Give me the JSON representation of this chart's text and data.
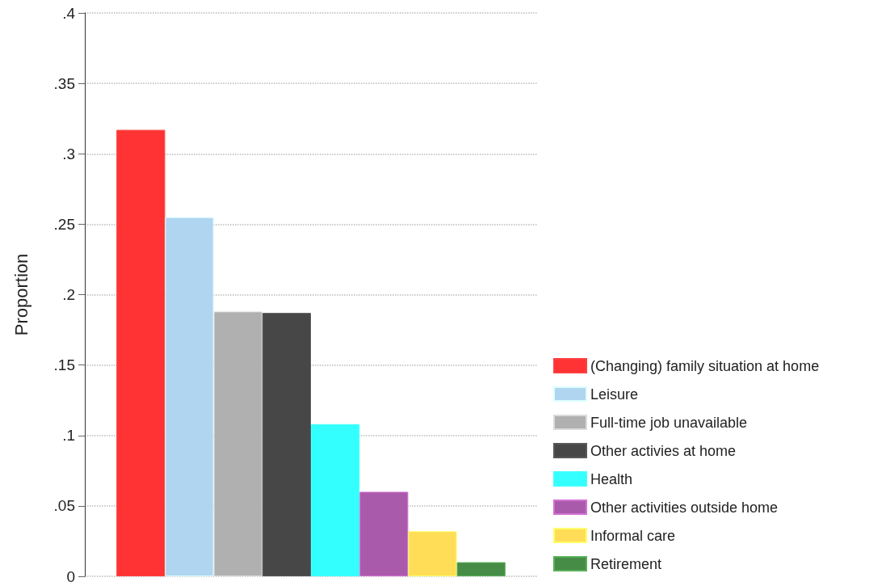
{
  "chart_data": {
    "type": "bar",
    "ylabel": "Proportion",
    "categories": [
      null
    ],
    "series": [
      {
        "name": "(Changing) family situation at home",
        "color": "#ff3333",
        "values": [
          0.317
        ]
      },
      {
        "name": "Leisure",
        "color": "#b0d5f0",
        "values": [
          0.255
        ]
      },
      {
        "name": "Full-time job unavailable",
        "color": "#b0b0b0",
        "values": [
          0.188
        ]
      },
      {
        "name": "Other activies at home",
        "color": "#474747",
        "values": [
          0.187
        ]
      },
      {
        "name": "Health",
        "color": "#33ffff",
        "values": [
          0.108
        ]
      },
      {
        "name": "Other activities outside home",
        "color": "#aa5aaa",
        "values": [
          0.06
        ]
      },
      {
        "name": "Informal care",
        "color": "#ffdd57",
        "values": [
          0.032
        ]
      },
      {
        "name": "Retirement",
        "color": "#468c46",
        "values": [
          0.01
        ]
      }
    ],
    "ylim": [
      0,
      0.4
    ],
    "yticks": [
      {
        "value": 0,
        "label": "0"
      },
      {
        "value": 0.05,
        "label": ".05"
      },
      {
        "value": 0.1,
        "label": ".1"
      },
      {
        "value": 0.15,
        "label": ".15"
      },
      {
        "value": 0.2,
        "label": ".2"
      },
      {
        "value": 0.25,
        "label": ".25"
      },
      {
        "value": 0.3,
        "label": ".3"
      },
      {
        "value": 0.35,
        "label": ".35"
      },
      {
        "value": 0.4,
        "label": ".4"
      }
    ],
    "grid": "y",
    "legend": "right"
  }
}
